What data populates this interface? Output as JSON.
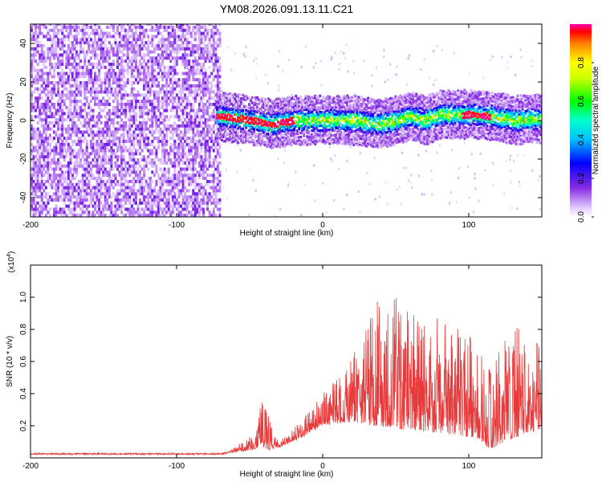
{
  "title": "YM08.2026.091.13.11.C21",
  "chart_data": [
    {
      "type": "heatmap",
      "name": "spectrogram",
      "xlabel": "Height of straight line (km)",
      "ylabel": "Frequency (Hz)",
      "xlim": [
        -200,
        150
      ],
      "ylim": [
        -50,
        50
      ],
      "xticks": [
        -200,
        -100,
        0,
        100
      ],
      "xtick_labels": [
        "-200",
        "-100",
        "0",
        "100"
      ],
      "yticks": [
        -40,
        -20,
        0,
        20,
        40
      ],
      "ytick_labels": [
        "-40",
        "-20",
        "0",
        "20",
        "40"
      ],
      "colorbar": {
        "label": "Normalized spectral amplitude",
        "range": [
          0,
          1
        ],
        "ticks": [
          0,
          0.2,
          0.4,
          0.6,
          0.8
        ],
        "tick_labels": [
          "0.0",
          "0.2",
          "0.4",
          "0.6",
          "0.8"
        ]
      },
      "description_data": {
        "noise_region_x": [
          -200,
          -70
        ],
        "signal_band_x": [
          -73,
          150
        ],
        "signal_center_hz": [
          {
            "x": -70,
            "f": 2
          },
          {
            "x": -50,
            "f": 0
          },
          {
            "x": -35,
            "f": -2
          },
          {
            "x": -20,
            "f": 0
          },
          {
            "x": 0,
            "f": 0
          },
          {
            "x": 20,
            "f": 0
          },
          {
            "x": 40,
            "f": -2
          },
          {
            "x": 60,
            "f": 2
          },
          {
            "x": 70,
            "f": 0
          },
          {
            "x": 80,
            "f": 3
          },
          {
            "x": 100,
            "f": 3
          },
          {
            "x": 115,
            "f": 2
          },
          {
            "x": 130,
            "f": 0
          },
          {
            "x": 150,
            "f": 1
          }
        ]
      }
    },
    {
      "type": "line",
      "name": "snr",
      "xlabel": "Height of straight line (km)",
      "ylabel": "SNR (10 * v/v)",
      "y_multiplier": "(x10",
      "y_multiplier_exp": "4",
      "y_multiplier_close": ")",
      "xlim": [
        -200,
        150
      ],
      "ylim": [
        0,
        1.2
      ],
      "xticks": [
        -200,
        -100,
        0,
        100
      ],
      "xtick_labels": [
        "-200",
        "-100",
        "0",
        "100"
      ],
      "yticks": [
        0.2,
        0.4,
        0.6,
        0.8,
        1.0
      ],
      "ytick_labels": [
        "0.2",
        "0.4",
        "0.6",
        "0.8",
        "1.0"
      ],
      "color": "#e83a3a",
      "envelope": [
        {
          "x": -200,
          "base": 0.02,
          "amp": 0.02
        },
        {
          "x": -70,
          "base": 0.02,
          "amp": 0.02
        },
        {
          "x": -60,
          "base": 0.03,
          "amp": 0.06
        },
        {
          "x": -45,
          "base": 0.05,
          "amp": 0.18
        },
        {
          "x": -42,
          "base": 0.08,
          "amp": 0.38
        },
        {
          "x": -38,
          "base": 0.04,
          "amp": 0.3
        },
        {
          "x": -30,
          "base": 0.06,
          "amp": 0.1
        },
        {
          "x": -15,
          "base": 0.12,
          "amp": 0.22
        },
        {
          "x": 0,
          "base": 0.2,
          "amp": 0.4
        },
        {
          "x": 20,
          "base": 0.22,
          "amp": 0.6
        },
        {
          "x": 30,
          "base": 0.2,
          "amp": 0.95
        },
        {
          "x": 50,
          "base": 0.18,
          "amp": 1.0
        },
        {
          "x": 80,
          "base": 0.15,
          "amp": 0.85
        },
        {
          "x": 105,
          "base": 0.12,
          "amp": 0.75
        },
        {
          "x": 115,
          "base": 0.05,
          "amp": 0.55
        },
        {
          "x": 125,
          "base": 0.1,
          "amp": 0.75
        },
        {
          "x": 140,
          "base": 0.15,
          "amp": 0.9
        },
        {
          "x": 150,
          "base": 0.18,
          "amp": 0.7
        }
      ]
    }
  ]
}
